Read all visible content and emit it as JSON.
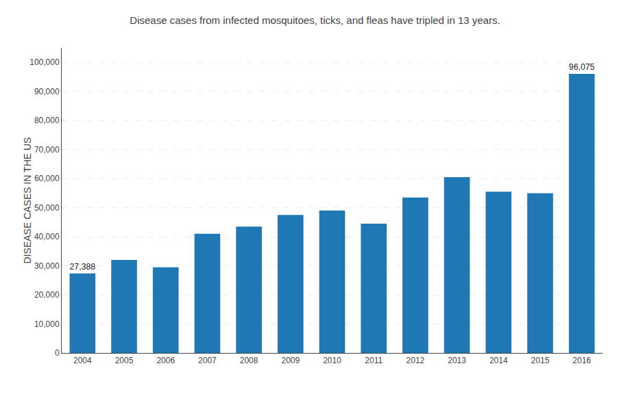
{
  "chart_data": {
    "type": "bar",
    "title": "Disease cases from infected mosquitoes, ticks, and fleas have tripled in 13 years.",
    "ylabel": "DISEASE CASES IN THE US",
    "categories": [
      "2004",
      "2005",
      "2006",
      "2007",
      "2008",
      "2009",
      "2010",
      "2011",
      "2012",
      "2013",
      "2014",
      "2015",
      "2016"
    ],
    "values": [
      27388,
      32000,
      29500,
      41000,
      43500,
      47500,
      49000,
      44500,
      53500,
      60500,
      55500,
      55000,
      96075
    ],
    "value_labels": [
      "27,388",
      null,
      null,
      null,
      null,
      null,
      null,
      null,
      null,
      null,
      null,
      null,
      "96,075"
    ],
    "ylim": [
      0,
      105000
    ],
    "yticks": [
      0,
      {
        "value": 10000,
        "label": "10,000"
      },
      {
        "value": 20000,
        "label": "20,000"
      },
      {
        "value": 30000,
        "label": "30,000"
      },
      {
        "value": 40000,
        "label": "40,000"
      },
      {
        "value": 50000,
        "label": "50,000"
      },
      {
        "value": 60000,
        "label": "60,000"
      },
      {
        "value": 70000,
        "label": "70,000"
      },
      {
        "value": 80000,
        "label": "80,000"
      },
      {
        "value": 90000,
        "label": "90,000"
      },
      {
        "value": 100000,
        "label": "100,000"
      }
    ],
    "grid": true
  }
}
